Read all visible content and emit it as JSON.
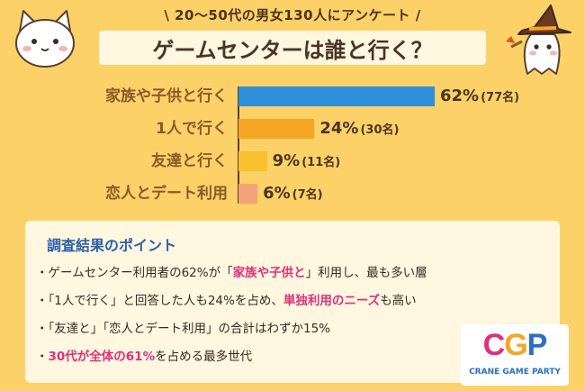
{
  "header": {
    "subtitle": "\\ 20〜50代の男女130人にアンケート /",
    "title": "ゲームセンターは誰と行く？"
  },
  "chart_data": {
    "type": "bar",
    "orientation": "horizontal",
    "categories": [
      "家族や子供と行く",
      "1人で行く",
      "友達と行く",
      "恋人とデート利用"
    ],
    "values": [
      62,
      24,
      9,
      6
    ],
    "value_labels": [
      "62%",
      "24%",
      "9%",
      "6%"
    ],
    "count_labels": [
      "(77名)",
      "(30名)",
      "(11名)",
      "(7名)"
    ],
    "bar_colors": [
      "#2f8fd8",
      "#f5a623",
      "#f8c12e",
      "#f4a27a"
    ],
    "title": "ゲームセンターは誰と行く？",
    "xlim": [
      0,
      62
    ],
    "grid": false
  },
  "points": {
    "heading": "調査結果のポイント",
    "items": [
      {
        "segments": [
          {
            "text": "・ゲームセンター利用者の62%が「",
            "hl": false
          },
          {
            "text": "家族や子供と",
            "hl": true
          },
          {
            "text": "」利用し、最も多い層",
            "hl": false
          }
        ]
      },
      {
        "segments": [
          {
            "text": "・「1人で行く」と回答した人も24%を占め、",
            "hl": false
          },
          {
            "text": "単独利用のニーズ",
            "hl": true
          },
          {
            "text": "も高い",
            "hl": false
          }
        ]
      },
      {
        "segments": [
          {
            "text": "・「友達と」「恋人とデート利用」の合計はわずか15%",
            "hl": false
          }
        ]
      },
      {
        "segments": [
          {
            "text": "・",
            "hl": false
          },
          {
            "text": "30代が全体の61%",
            "hl": true
          },
          {
            "text": "を占める最多世代",
            "hl": false
          }
        ]
      }
    ]
  },
  "logo": {
    "letters": [
      {
        "char": "C",
        "color": "#e0307a"
      },
      {
        "char": "G",
        "color": "#f5a623"
      },
      {
        "char": "P",
        "color": "#2a6fc0"
      }
    ],
    "tagline": "CRANE GAME PARTY"
  },
  "icons": {
    "left_mascot": "cat-mascot-icon",
    "right_mascot": "ghost-witch-mascot-icon"
  }
}
